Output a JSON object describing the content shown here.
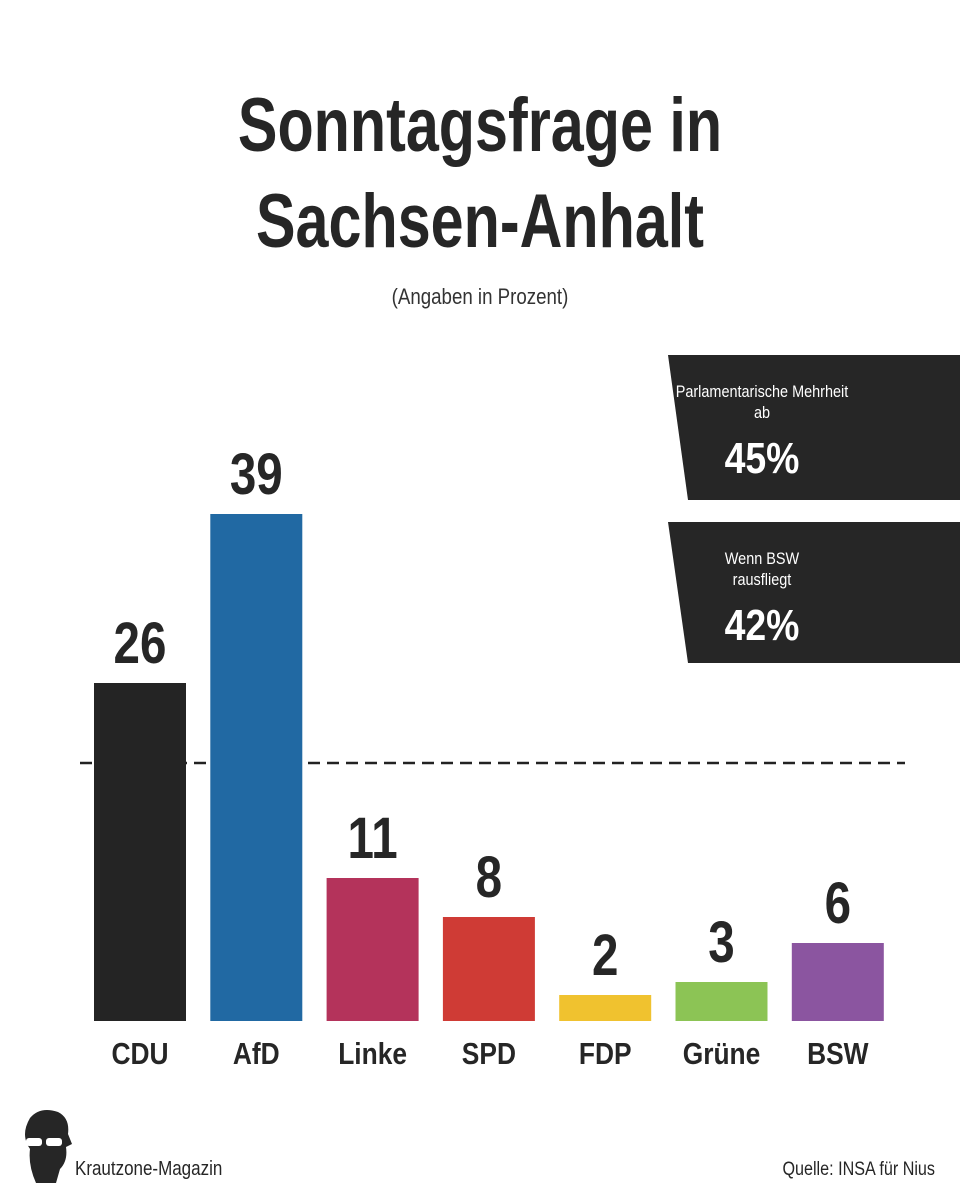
{
  "chart_data": {
    "type": "bar",
    "title": "Sonntagsfrage in Sachsen-Anhalt",
    "subtitle": "(Angaben in Prozent)",
    "categories": [
      "CDU",
      "AfD",
      "Linke",
      "SPD",
      "FDP",
      "Grüne",
      "BSW"
    ],
    "values": [
      26,
      39,
      11,
      8,
      2,
      3,
      6
    ],
    "colors": [
      "#242424",
      "#2169a3",
      "#b4335b",
      "#cf3b35",
      "#f0c22f",
      "#8cc455",
      "#8b55a0"
    ],
    "annotations": [
      {
        "text": "Parlamentarische Mehrheit ab",
        "value": "45%"
      },
      {
        "text": "Wenn BSW rausfliegt",
        "value": "42%"
      }
    ]
  },
  "footer": {
    "brand": "Krautzone-Magazin",
    "source": "Quelle: INSA für Nius"
  }
}
